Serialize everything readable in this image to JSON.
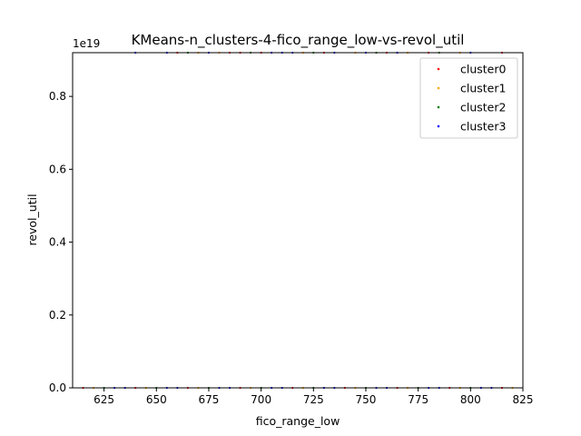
{
  "chart_data": {
    "type": "scatter",
    "title": "KMeans-n_clusters-4-fico_range_low-vs-revol_util",
    "xlabel": "fico_range_low",
    "ylabel": "revol_util",
    "y_offset_label": "1e19",
    "xlim": [
      610,
      825
    ],
    "ylim": [
      0,
      0.92
    ],
    "x_ticks": [
      625,
      650,
      675,
      700,
      725,
      750,
      775,
      800,
      825
    ],
    "x_tick_labels": [
      "625",
      "650",
      "675",
      "700",
      "725",
      "750",
      "775",
      "800",
      "825"
    ],
    "y_ticks": [
      0,
      0.2,
      0.4,
      0.6,
      0.8
    ],
    "y_tick_labels": [
      "0.0",
      "0.2",
      "0.4",
      "0.6",
      "0.8"
    ],
    "grid": false,
    "legend_position": "top-right",
    "series": [
      {
        "name": "cluster0",
        "color": "#ff0000",
        "points": [
          [
            660,
            0.92
          ],
          [
            685,
            0.92
          ],
          [
            690,
            0.92
          ],
          [
            700,
            0.92
          ],
          [
            730,
            0.92
          ],
          [
            760,
            0.92
          ],
          [
            780,
            0.92
          ],
          [
            815,
            0.92
          ],
          [
            615,
            0
          ],
          [
            640,
            0
          ],
          [
            665,
            0
          ],
          [
            690,
            0
          ],
          [
            715,
            0
          ],
          [
            740,
            0
          ],
          [
            765,
            0
          ],
          [
            790,
            0
          ],
          [
            815,
            0
          ]
        ]
      },
      {
        "name": "cluster1",
        "color": "#ffa500",
        "points": [
          [
            670,
            0.92
          ],
          [
            680,
            0.92
          ],
          [
            720,
            0.92
          ],
          [
            745,
            0.92
          ],
          [
            770,
            0.92
          ],
          [
            795,
            0.92
          ],
          [
            620,
            0
          ],
          [
            645,
            0
          ],
          [
            670,
            0
          ],
          [
            695,
            0
          ],
          [
            720,
            0
          ],
          [
            745,
            0
          ],
          [
            770,
            0
          ],
          [
            795,
            0
          ],
          [
            820,
            0
          ]
        ]
      },
      {
        "name": "cluster2",
        "color": "#008000",
        "points": [
          [
            665,
            0.92
          ],
          [
            695,
            0.92
          ],
          [
            725,
            0.92
          ],
          [
            755,
            0.92
          ],
          [
            785,
            0.92
          ],
          [
            625,
            0
          ],
          [
            650,
            0
          ],
          [
            675,
            0
          ],
          [
            700,
            0
          ],
          [
            725,
            0
          ],
          [
            750,
            0
          ],
          [
            775,
            0
          ],
          [
            800,
            0
          ]
        ]
      },
      {
        "name": "cluster3",
        "color": "#0000ff",
        "points": [
          [
            640,
            0.92
          ],
          [
            655,
            0.92
          ],
          [
            675,
            0.92
          ],
          [
            705,
            0.92
          ],
          [
            710,
            0.92
          ],
          [
            715,
            0.92
          ],
          [
            735,
            0.92
          ],
          [
            750,
            0.92
          ],
          [
            765,
            0.92
          ],
          [
            800,
            0.92
          ],
          [
            630,
            0
          ],
          [
            635,
            0
          ],
          [
            655,
            0
          ],
          [
            660,
            0
          ],
          [
            680,
            0
          ],
          [
            685,
            0
          ],
          [
            705,
            0
          ],
          [
            710,
            0
          ],
          [
            730,
            0
          ],
          [
            735,
            0
          ],
          [
            755,
            0
          ],
          [
            760,
            0
          ],
          [
            780,
            0
          ],
          [
            785,
            0
          ],
          [
            805,
            0
          ],
          [
            810,
            0
          ]
        ]
      }
    ]
  }
}
